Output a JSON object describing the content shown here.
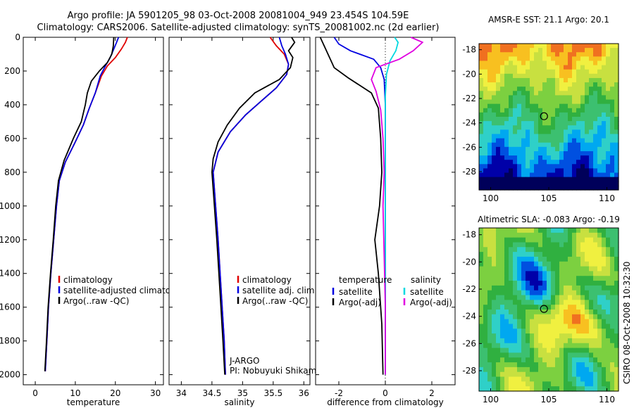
{
  "header": {
    "line1": "Argo profile: JA 5901205_98 03-Oct-2008 20081004_949 23.454S 104.59E",
    "line2": "Climatology: CARS2006. Satellite-adjusted climatology: synTS_20081002.nc (2d earlier)"
  },
  "side_label": "CSIRO 08-Oct-2008 10:32:30",
  "chart_data": [
    {
      "type": "line",
      "id": "temperature",
      "xlabel": "temperature",
      "xlim": [
        -3,
        32
      ],
      "ylim": [
        0,
        2060
      ],
      "xticks": [
        0,
        10,
        20,
        30
      ],
      "yticks": [
        0,
        200,
        400,
        600,
        800,
        1000,
        1200,
        1400,
        1600,
        1800,
        2000
      ],
      "legend": [
        "climatology",
        "satellite-adjusted climatology",
        "Argo(..raw -QC)"
      ],
      "series": [
        {
          "name": "climatology",
          "color": "#e00000",
          "points": [
            [
              23.0,
              0
            ],
            [
              22.5,
              30
            ],
            [
              21.5,
              70
            ],
            [
              20.0,
              120
            ],
            [
              18.0,
              170
            ],
            [
              16.5,
              230
            ],
            [
              15.0,
              330
            ],
            [
              13.5,
              420
            ],
            [
              12.0,
              520
            ],
            [
              10.0,
              620
            ],
            [
              7.5,
              740
            ],
            [
              6.0,
              850
            ],
            [
              5.3,
              1000
            ],
            [
              4.6,
              1200
            ],
            [
              3.9,
              1400
            ],
            [
              3.3,
              1600
            ],
            [
              2.9,
              1800
            ],
            [
              2.5,
              1980
            ]
          ]
        },
        {
          "name": "satellite-adjusted climatology",
          "color": "#0000e0",
          "points": [
            [
              20.8,
              0
            ],
            [
              20.3,
              30
            ],
            [
              19.6,
              70
            ],
            [
              18.7,
              120
            ],
            [
              17.5,
              170
            ],
            [
              16.2,
              230
            ],
            [
              15.0,
              330
            ],
            [
              13.5,
              420
            ],
            [
              12.0,
              520
            ],
            [
              10.0,
              620
            ],
            [
              7.5,
              740
            ],
            [
              6.0,
              850
            ],
            [
              5.3,
              1000
            ],
            [
              4.6,
              1200
            ],
            [
              3.9,
              1400
            ],
            [
              3.3,
              1600
            ],
            [
              2.9,
              1800
            ],
            [
              2.5,
              1980
            ]
          ]
        },
        {
          "name": "Argo(..raw -QC)",
          "color": "#000000",
          "points": [
            [
              19.6,
              0
            ],
            [
              19.5,
              50
            ],
            [
              19.1,
              100
            ],
            [
              18.0,
              150
            ],
            [
              16.0,
              200
            ],
            [
              14.0,
              260
            ],
            [
              13.0,
              330
            ],
            [
              12.5,
              400
            ],
            [
              11.5,
              500
            ],
            [
              9.5,
              600
            ],
            [
              7.2,
              730
            ],
            [
              5.8,
              850
            ],
            [
              5.1,
              1000
            ],
            [
              4.5,
              1200
            ],
            [
              3.8,
              1400
            ],
            [
              3.2,
              1600
            ],
            [
              2.8,
              1800
            ],
            [
              2.4,
              1980
            ]
          ]
        }
      ]
    },
    {
      "type": "line",
      "id": "salinity",
      "xlabel": "salinity",
      "xlim": [
        33.8,
        36.1
      ],
      "ylim": [
        0,
        2060
      ],
      "xticks": [
        34,
        34.5,
        35,
        35.5,
        36
      ],
      "yticks": [
        0,
        200,
        400,
        600,
        800,
        1000,
        1200,
        1400,
        1600,
        1800,
        2000
      ],
      "legend": [
        "climatology",
        "satellite adj. clim.",
        "Argo(..raw -QC)"
      ],
      "annotation": [
        "J-ARGO",
        "PI: Nobuyuki Shikama"
      ],
      "series": [
        {
          "name": "climatology",
          "color": "#e00000",
          "points": [
            [
              35.45,
              0
            ],
            [
              35.55,
              50
            ],
            [
              35.68,
              100
            ],
            [
              35.75,
              160
            ],
            [
              35.72,
              220
            ],
            [
              35.55,
              300
            ],
            [
              35.3,
              380
            ],
            [
              35.05,
              460
            ],
            [
              34.8,
              560
            ],
            [
              34.6,
              680
            ],
            [
              34.52,
              800
            ],
            [
              34.55,
              950
            ],
            [
              34.6,
              1200
            ],
            [
              34.65,
              1500
            ],
            [
              34.7,
              1800
            ],
            [
              34.72,
              2000
            ]
          ]
        },
        {
          "name": "satellite adj. clim.",
          "color": "#0000e0",
          "points": [
            [
              35.6,
              0
            ],
            [
              35.64,
              50
            ],
            [
              35.7,
              100
            ],
            [
              35.75,
              160
            ],
            [
              35.72,
              220
            ],
            [
              35.55,
              300
            ],
            [
              35.3,
              380
            ],
            [
              35.05,
              460
            ],
            [
              34.8,
              560
            ],
            [
              34.6,
              680
            ],
            [
              34.52,
              800
            ],
            [
              34.55,
              950
            ],
            [
              34.6,
              1200
            ],
            [
              34.65,
              1500
            ],
            [
              34.7,
              1800
            ],
            [
              34.72,
              2000
            ]
          ]
        },
        {
          "name": "Argo(..raw -QC)",
          "color": "#000000",
          "points": [
            [
              35.8,
              0
            ],
            [
              35.85,
              30
            ],
            [
              35.75,
              80
            ],
            [
              35.82,
              120
            ],
            [
              35.78,
              180
            ],
            [
              35.6,
              250
            ],
            [
              35.2,
              330
            ],
            [
              34.95,
              420
            ],
            [
              34.75,
              520
            ],
            [
              34.6,
              620
            ],
            [
              34.52,
              720
            ],
            [
              34.5,
              800
            ],
            [
              34.53,
              950
            ],
            [
              34.58,
              1200
            ],
            [
              34.63,
              1500
            ],
            [
              34.68,
              1800
            ],
            [
              34.71,
              2000
            ]
          ]
        }
      ]
    },
    {
      "type": "line",
      "id": "difference",
      "xlabel": "difference from climatology",
      "xlim": [
        -3,
        3
      ],
      "ylim": [
        0,
        2060
      ],
      "xticks": [
        -2,
        0,
        2
      ],
      "yticks": [
        0,
        200,
        400,
        600,
        800,
        1000,
        1200,
        1400,
        1600,
        1800,
        2000
      ],
      "legend_left": {
        "header": "temperature",
        "items": [
          "satellite",
          "Argo(-adj)"
        ]
      },
      "legend_right": {
        "header": "salinity",
        "items": [
          "satellite",
          "Argo(-adj)"
        ]
      },
      "series": [
        {
          "name": "temperature satellite",
          "color": "#0000e0",
          "points": [
            [
              -2.2,
              0
            ],
            [
              -2.0,
              40
            ],
            [
              -1.5,
              80
            ],
            [
              -0.5,
              130
            ],
            [
              -0.2,
              180
            ],
            [
              -0.05,
              250
            ],
            [
              0,
              400
            ],
            [
              0,
              2000
            ]
          ]
        },
        {
          "name": "temperature Argo(-adj)",
          "color": "#000000",
          "points": [
            [
              -2.8,
              0
            ],
            [
              -2.6,
              60
            ],
            [
              -2.4,
              120
            ],
            [
              -2.2,
              180
            ],
            [
              -1.6,
              240
            ],
            [
              -0.6,
              330
            ],
            [
              -0.3,
              420
            ],
            [
              -0.2,
              600
            ],
            [
              -0.15,
              800
            ],
            [
              -0.25,
              1000
            ],
            [
              -0.45,
              1200
            ],
            [
              -0.3,
              1400
            ],
            [
              -0.15,
              1700
            ],
            [
              -0.1,
              2000
            ]
          ]
        },
        {
          "name": "salinity satellite",
          "color": "#00d8e0",
          "points": [
            [
              0.4,
              0
            ],
            [
              0.55,
              30
            ],
            [
              0.45,
              80
            ],
            [
              0.2,
              140
            ],
            [
              0.05,
              220
            ],
            [
              0,
              350
            ],
            [
              0,
              2000
            ]
          ]
        },
        {
          "name": "salinity Argo(-adj)",
          "color": "#e000e0",
          "points": [
            [
              1.1,
              0
            ],
            [
              1.6,
              30
            ],
            [
              1.2,
              80
            ],
            [
              0.6,
              130
            ],
            [
              -0.4,
              180
            ],
            [
              -0.6,
              250
            ],
            [
              -0.4,
              320
            ],
            [
              -0.2,
              430
            ],
            [
              -0.1,
              600
            ],
            [
              -0.05,
              800
            ],
            [
              -0.1,
              1000
            ],
            [
              -0.05,
              1300
            ],
            [
              0,
              1600
            ],
            [
              0,
              2000
            ]
          ]
        }
      ]
    }
  ],
  "maps": [
    {
      "title": "AMSR-E SST: 21.1 Argo: 20.1",
      "xlim": [
        99,
        111
      ],
      "ylim": [
        -29.5,
        -17.5
      ],
      "xticks": [
        100,
        105,
        110
      ],
      "yticks": [
        -18,
        -20,
        -22,
        -24,
        -26,
        -28
      ],
      "marker": [
        104.59,
        -23.454
      ],
      "palette": [
        "#00005a",
        "#0000a8",
        "#0050e0",
        "#00a8f0",
        "#2fd0c8",
        "#3cc070",
        "#30b040",
        "#7cd040",
        "#c8e040",
        "#f0f040",
        "#f8c020",
        "#f07020"
      ],
      "kind": "sst"
    },
    {
      "title": "Altimetric SLA: -0.083 Argo: -0.19",
      "xlim": [
        99,
        111
      ],
      "ylim": [
        -29.5,
        -17.5
      ],
      "xticks": [
        100,
        105,
        110
      ],
      "yticks": [
        -18,
        -20,
        -22,
        -24,
        -26,
        -28
      ],
      "marker": [
        104.59,
        -23.454
      ],
      "palette": [
        "#00005a",
        "#0000a8",
        "#0050e0",
        "#00a8f0",
        "#2fd0c8",
        "#3cc070",
        "#30b040",
        "#7cd040",
        "#c8e040",
        "#f0f040",
        "#f8c020",
        "#f07020"
      ],
      "kind": "sla"
    }
  ]
}
